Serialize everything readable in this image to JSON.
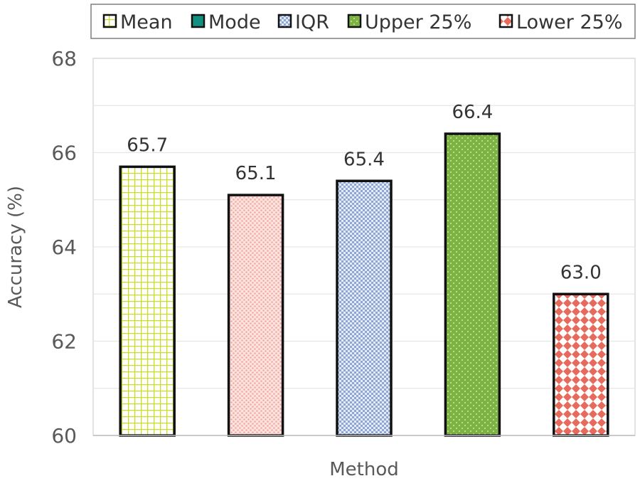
{
  "chart_data": {
    "type": "bar",
    "categories": [
      "Mean",
      "Mode",
      "IQR",
      "Upper 25%",
      "Lower 25%"
    ],
    "values": [
      65.7,
      65.1,
      65.4,
      66.4,
      63.0
    ],
    "data_labels": [
      "65.7",
      "65.1",
      "65.4",
      "66.4",
      "63.0"
    ],
    "title": "",
    "xlabel": "Method",
    "ylabel": "Accuracy (%)",
    "ylim": [
      60,
      68
    ],
    "yticks": [
      60,
      62,
      64,
      66,
      68
    ],
    "grid": true,
    "legend": {
      "placement": "top",
      "entries": [
        "Mean",
        "Mode",
        "IQR",
        "Upper 25%",
        "Lower 25%"
      ]
    },
    "colors": {
      "Mean": "#c8dc28",
      "Mode": "#f4b6b0",
      "IQR": "#8fa8d8",
      "Upper 25%": "#7cb342",
      "Lower 25%": "#e86a5c",
      "legend_mode_swatch": "#138f7f"
    }
  }
}
